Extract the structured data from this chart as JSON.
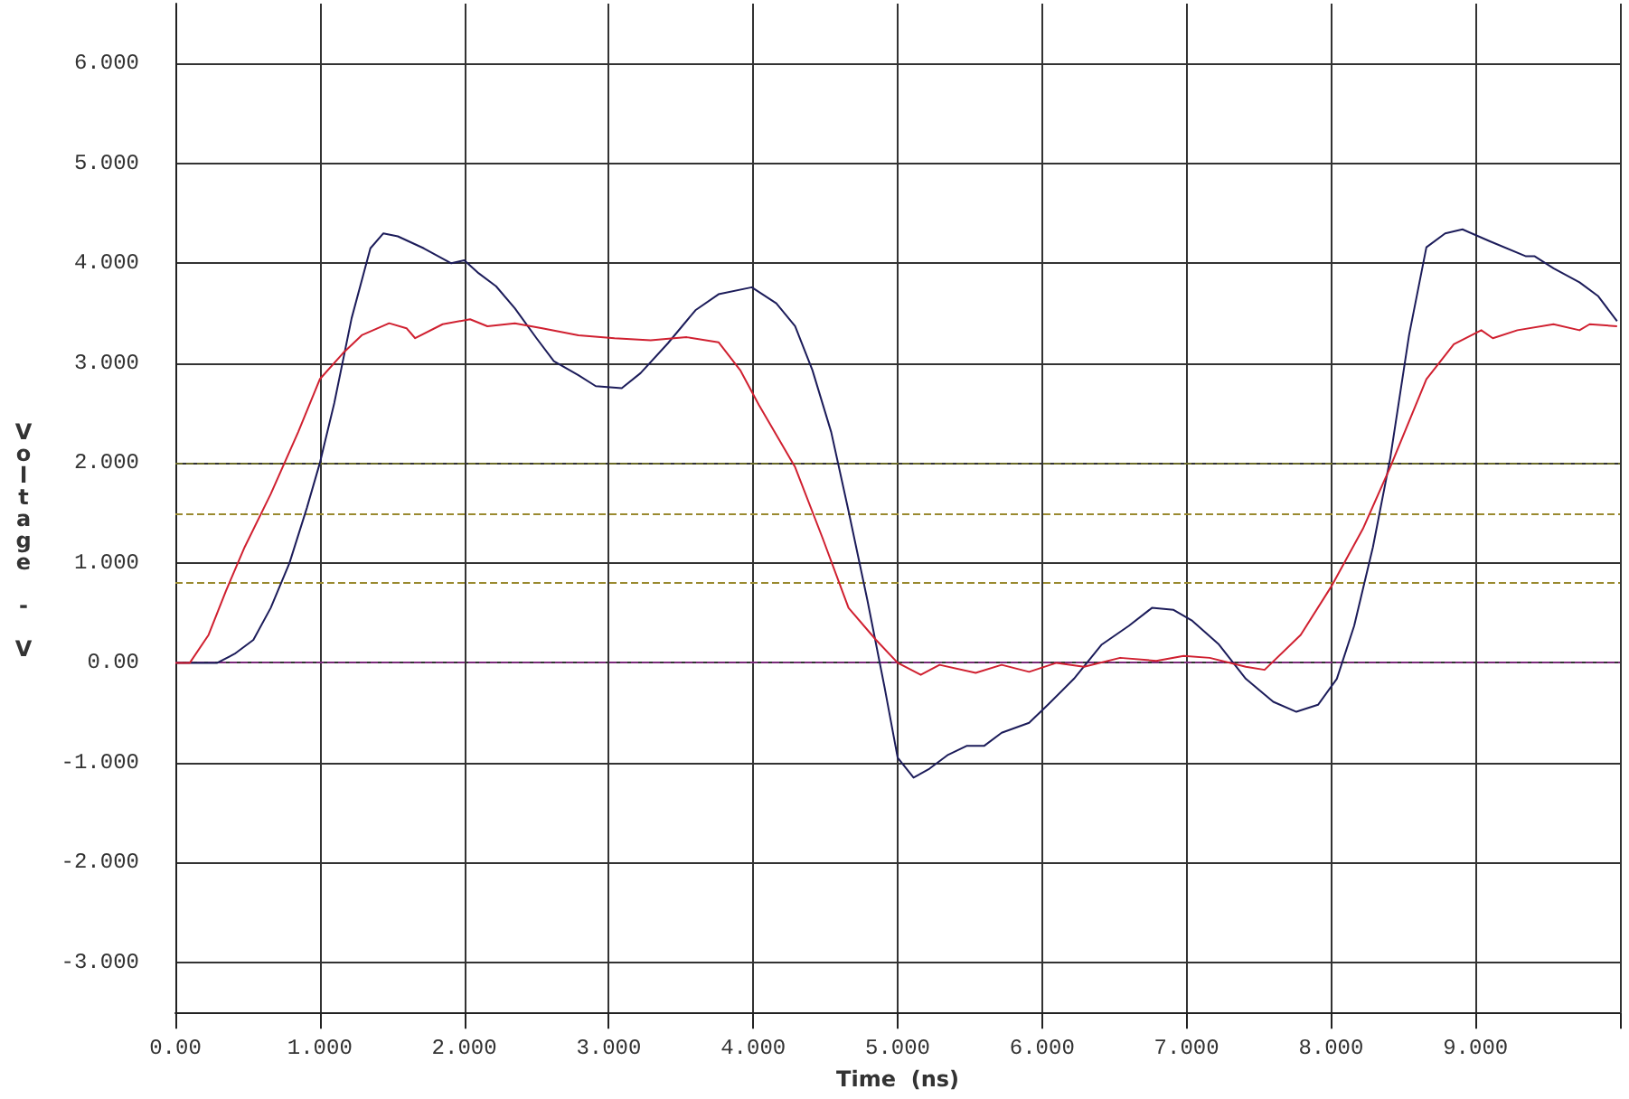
{
  "chart_data": {
    "type": "line",
    "xlabel": "Time  (ns)",
    "ylabel": "Voltage - V",
    "xlim": [
      0,
      10
    ],
    "ylim": [
      -3.5,
      6.6
    ],
    "xticks": [
      {
        "value": 0,
        "label": "0.00"
      },
      {
        "value": 1,
        "label": "1.000"
      },
      {
        "value": 2,
        "label": "2.000"
      },
      {
        "value": 3,
        "label": "3.000"
      },
      {
        "value": 4,
        "label": "4.000"
      },
      {
        "value": 5,
        "label": "5.000"
      },
      {
        "value": 6,
        "label": "6.000"
      },
      {
        "value": 7,
        "label": "7.000"
      },
      {
        "value": 8,
        "label": "8.000"
      },
      {
        "value": 9,
        "label": "9.000"
      },
      {
        "value": 10,
        "label": null
      }
    ],
    "yticks": [
      {
        "value": -3,
        "label": "-3.000"
      },
      {
        "value": -2,
        "label": "-2.000"
      },
      {
        "value": -1,
        "label": "-1.000"
      },
      {
        "value": 0,
        "label": "0.00"
      },
      {
        "value": 1,
        "label": "1.000"
      },
      {
        "value": 2,
        "label": "2.000"
      },
      {
        "value": 3,
        "label": "3.000"
      },
      {
        "value": 4,
        "label": "4.000"
      },
      {
        "value": 5,
        "label": "5.000"
      },
      {
        "value": 6,
        "label": "6.000"
      }
    ],
    "grid": true,
    "marker": "none",
    "line_style": "solid",
    "ref_lines": [
      {
        "axis": "y",
        "value": 2,
        "color": "#6b6b2a",
        "line_style": "dashed"
      },
      {
        "axis": "y",
        "value": 1.5,
        "color": "#9a8a30",
        "line_style": "dashed"
      },
      {
        "axis": "y",
        "value": 0.8,
        "color": "#9a8a30",
        "line_style": "dashed"
      },
      {
        "axis": "y",
        "value": 0,
        "color": "#7a2a7a",
        "line_style": "dashed"
      }
    ],
    "series": [
      {
        "color": "#1c1c5a",
        "x": [
          0,
          0.29,
          0.41,
          0.54,
          0.66,
          0.79,
          0.91,
          1.0,
          1.1,
          1.22,
          1.35,
          1.44,
          1.54,
          1.72,
          1.91,
          2.0,
          2.1,
          2.22,
          2.35,
          2.5,
          2.62,
          2.79,
          2.91,
          3.09,
          3.22,
          3.41,
          3.6,
          3.76,
          3.99,
          4.16,
          4.29,
          4.41,
          4.54,
          4.66,
          4.79,
          4.91,
          5.0,
          5.11,
          5.22,
          5.35,
          5.48,
          5.6,
          5.72,
          5.91,
          6.04,
          6.22,
          6.41,
          6.6,
          6.76,
          6.91,
          7.04,
          7.22,
          7.41,
          7.6,
          7.76,
          7.91,
          8.04,
          8.16,
          8.29,
          8.41,
          8.54,
          8.66,
          8.79,
          8.91,
          9.1,
          9.35,
          9.41,
          9.54,
          9.72,
          9.85,
          9.98
        ],
        "values": [
          0,
          0,
          0.09,
          0.23,
          0.55,
          1.0,
          1.55,
          2.0,
          2.6,
          3.45,
          4.15,
          4.3,
          4.27,
          4.15,
          4.0,
          4.03,
          3.9,
          3.77,
          3.55,
          3.25,
          3.02,
          2.88,
          2.77,
          2.75,
          2.9,
          3.2,
          3.53,
          3.69,
          3.76,
          3.6,
          3.37,
          2.93,
          2.31,
          1.52,
          0.63,
          -0.25,
          -0.95,
          -1.15,
          -1.06,
          -0.92,
          -0.83,
          -0.83,
          -0.7,
          -0.6,
          -0.42,
          -0.16,
          0.18,
          0.37,
          0.55,
          0.53,
          0.42,
          0.19,
          -0.16,
          -0.39,
          -0.49,
          -0.42,
          -0.16,
          0.37,
          1.16,
          2.05,
          3.28,
          4.16,
          4.3,
          4.34,
          4.22,
          4.07,
          4.07,
          3.95,
          3.81,
          3.67,
          3.42
        ]
      },
      {
        "color": "#d02030",
        "x": [
          0,
          0.1,
          0.23,
          0.35,
          0.48,
          0.66,
          0.85,
          1.0,
          1.16,
          1.29,
          1.48,
          1.6,
          1.66,
          1.85,
          2.04,
          2.16,
          2.35,
          2.54,
          2.79,
          3.04,
          3.29,
          3.54,
          3.76,
          3.91,
          4.04,
          4.29,
          4.48,
          4.66,
          4.85,
          5.0,
          5.16,
          5.29,
          5.54,
          5.72,
          5.91,
          6.1,
          6.29,
          6.54,
          6.79,
          6.98,
          7.16,
          7.41,
          7.54,
          7.79,
          8.0,
          8.22,
          8.41,
          8.66,
          8.85,
          9.04,
          9.12,
          9.29,
          9.54,
          9.72,
          9.79,
          9.98
        ],
        "values": [
          0,
          0,
          0.28,
          0.72,
          1.16,
          1.69,
          2.31,
          2.84,
          3.1,
          3.28,
          3.4,
          3.35,
          3.25,
          3.39,
          3.44,
          3.37,
          3.4,
          3.35,
          3.28,
          3.25,
          3.23,
          3.26,
          3.21,
          2.93,
          2.58,
          1.96,
          1.25,
          0.55,
          0.23,
          0,
          -0.12,
          -0.02,
          -0.1,
          -0.02,
          -0.09,
          0,
          -0.04,
          0.05,
          0.02,
          0.07,
          0.05,
          -0.04,
          -0.07,
          0.28,
          0.76,
          1.34,
          1.96,
          2.84,
          3.19,
          3.33,
          3.25,
          3.33,
          3.39,
          3.33,
          3.39,
          3.37
        ]
      }
    ]
  }
}
